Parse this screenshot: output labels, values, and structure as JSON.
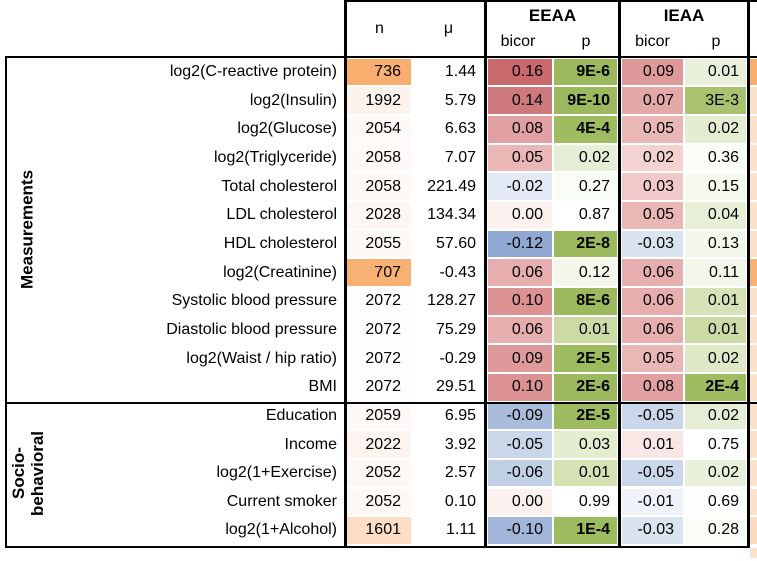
{
  "header": {
    "col_n": "n",
    "col_mu": "μ",
    "group_eeaa": "EEAA",
    "group_ieaa": "IEAA",
    "sub_bicor_eeaa": "bicor",
    "sub_p_eeaa": "p",
    "sub_bicor_ieaa": "bicor",
    "sub_p_ieaa": "p"
  },
  "groups": [
    {
      "label": "Measurements"
    },
    {
      "label": "Socio-\nbehavioral"
    }
  ],
  "colors": {
    "n_highlight_orange": "#F8AE6E",
    "bicor_positive_red": "#C9696E",
    "bicor_negative_blue": "#90A8D1",
    "p_significant_green": "#9CBA5D",
    "edge_column_peach": "#FBE2CA",
    "border_black": "#000000"
  },
  "chart_data": {
    "type": "table",
    "column_groups": [
      "EEAA",
      "IEAA"
    ],
    "columns": [
      "n",
      "μ",
      "EEAA bicor",
      "EEAA p",
      "IEAA bicor",
      "IEAA p"
    ],
    "row_groups": [
      {
        "name": "Measurements",
        "row_count": 12
      },
      {
        "name": "Socio-behavioral",
        "row_count": 5
      }
    ],
    "rows": [
      {
        "label": "log2(C-reactive protein)",
        "n": "736",
        "mu": "1.44",
        "eeaa_bicor": "0.16",
        "eeaa_p": "9E-6",
        "eeaa_p_bold": true,
        "ieaa_bicor": "0.09",
        "ieaa_p": "0.01",
        "ieaa_p_bold": false,
        "bg": {
          "n": "#F8AE6E",
          "mu": "#FFFFFF",
          "eeaa_bicor": "#C9696E",
          "eeaa_p": "#9CBA5D",
          "ieaa_bicor": "#DE999A",
          "ieaa_p": "#E8EFDA",
          "edge": "#F8AE6E"
        }
      },
      {
        "label": "log2(Insulin)",
        "n": "1992",
        "mu": "5.79",
        "eeaa_bicor": "0.14",
        "eeaa_p": "9E-10",
        "eeaa_p_bold": true,
        "ieaa_bicor": "0.07",
        "ieaa_p": "3E-3",
        "ieaa_p_bold": false,
        "bg": {
          "n": "#FDF3ED",
          "mu": "#FFFFFF",
          "eeaa_bicor": "#CE797C",
          "eeaa_p": "#9CBA5D",
          "ieaa_bicor": "#E4A8A9",
          "ieaa_p": "#A8C26F",
          "edge": "#FBE2CA"
        }
      },
      {
        "label": "log2(Glucose)",
        "n": "2054",
        "mu": "6.63",
        "eeaa_bicor": "0.08",
        "eeaa_p": "4E-4",
        "eeaa_p_bold": true,
        "ieaa_bicor": "0.05",
        "ieaa_p": "0.02",
        "ieaa_p_bold": false,
        "bg": {
          "n": "#FEF9F6",
          "mu": "#FFFFFF",
          "eeaa_bicor": "#E1A1A2",
          "eeaa_p": "#9FBC61",
          "ieaa_bicor": "#EAB7B7",
          "ieaa_p": "#E4EDD2",
          "edge": "#FBE2CA"
        }
      },
      {
        "label": "log2(Triglyceride)",
        "n": "2058",
        "mu": "7.07",
        "eeaa_bicor": "0.05",
        "eeaa_p": "0.02",
        "eeaa_p_bold": false,
        "ieaa_bicor": "0.02",
        "ieaa_p": "0.36",
        "ieaa_p_bold": false,
        "bg": {
          "n": "#FEF9F7",
          "mu": "#FFFFFF",
          "eeaa_bicor": "#EAB7B7",
          "eeaa_p": "#E6EED6",
          "ieaa_bicor": "#F3D2D1",
          "ieaa_p": "#FBFDF8",
          "edge": "#FBE2CA"
        }
      },
      {
        "label": "Total cholesterol",
        "n": "2058",
        "mu": "221.49",
        "eeaa_bicor": "-0.02",
        "eeaa_p": "0.27",
        "eeaa_p_bold": false,
        "ieaa_bicor": "0.03",
        "ieaa_p": "0.15",
        "ieaa_p_bold": false,
        "bg": {
          "n": "#FEF9F7",
          "mu": "#FFFFFF",
          "eeaa_bicor": "#E2E9F4",
          "eeaa_p": "#FAFCF6",
          "ieaa_bicor": "#F0C9C8",
          "ieaa_p": "#F5F9EE",
          "edge": "#FBE2CA"
        }
      },
      {
        "label": "LDL cholesterol",
        "n": "2028",
        "mu": "134.34",
        "eeaa_bicor": "0.00",
        "eeaa_p": "0.87",
        "eeaa_p_bold": false,
        "ieaa_bicor": "0.05",
        "ieaa_p": "0.04",
        "ieaa_p_bold": false,
        "bg": {
          "n": "#FEF6F2",
          "mu": "#FFFFFF",
          "eeaa_bicor": "#FBF1EF",
          "eeaa_p": "#FFFFFF",
          "ieaa_bicor": "#EAB7B7",
          "ieaa_p": "#E7EFD6",
          "edge": "#FBE2CA"
        }
      },
      {
        "label": "HDL cholesterol",
        "n": "2055",
        "mu": "57.60",
        "eeaa_bicor": "-0.12",
        "eeaa_p": "2E-8",
        "eeaa_p_bold": true,
        "ieaa_bicor": "-0.03",
        "ieaa_p": "0.13",
        "ieaa_p_bold": false,
        "bg": {
          "n": "#FEF9F6",
          "mu": "#FFFFFF",
          "eeaa_bicor": "#90A8D1",
          "eeaa_p": "#9CBA5D",
          "ieaa_bicor": "#DAE3F0",
          "ieaa_p": "#F4F8EC",
          "edge": "#FBE2CA"
        }
      },
      {
        "label": "log2(Creatinine)",
        "n": "707",
        "mu": "-0.43",
        "eeaa_bicor": "0.06",
        "eeaa_p": "0.12",
        "eeaa_p_bold": false,
        "ieaa_bicor": "0.06",
        "ieaa_p": "0.11",
        "ieaa_p_bold": false,
        "bg": {
          "n": "#F8B172",
          "mu": "#FFFFFF",
          "eeaa_bicor": "#E6AEAF",
          "eeaa_p": "#F3F8EB",
          "ieaa_bicor": "#E6AEAF",
          "ieaa_p": "#F3F7EA",
          "edge": "#F8B172"
        }
      },
      {
        "label": "Systolic blood pressure",
        "n": "2072",
        "mu": "128.27",
        "eeaa_bicor": "0.10",
        "eeaa_p": "8E-6",
        "eeaa_p_bold": true,
        "ieaa_bicor": "0.06",
        "ieaa_p": "0.01",
        "ieaa_p_bold": false,
        "bg": {
          "n": "#FFFEFE",
          "mu": "#FFFFFF",
          "eeaa_bicor": "#DC9193",
          "eeaa_p": "#9CBA5D",
          "ieaa_bicor": "#E6AEAF",
          "ieaa_p": "#D6E3B6",
          "edge": "#FBE2CA"
        }
      },
      {
        "label": "Diastolic blood pressure",
        "n": "2072",
        "mu": "75.29",
        "eeaa_bicor": "0.06",
        "eeaa_p": "0.01",
        "eeaa_p_bold": false,
        "ieaa_bicor": "0.06",
        "ieaa_p": "0.01",
        "ieaa_p_bold": false,
        "bg": {
          "n": "#FFFEFE",
          "mu": "#FFFFFF",
          "eeaa_bicor": "#E6AEAF",
          "eeaa_p": "#CCDBA6",
          "ieaa_bicor": "#E6AEAF",
          "ieaa_p": "#CCDBA6",
          "edge": "#FBE2CA"
        }
      },
      {
        "label": "log2(Waist / hip ratio)",
        "n": "2072",
        "mu": "-0.29",
        "eeaa_bicor": "0.09",
        "eeaa_p": "2E-5",
        "eeaa_p_bold": true,
        "ieaa_bicor": "0.05",
        "ieaa_p": "0.02",
        "ieaa_p_bold": false,
        "bg": {
          "n": "#FFFEFE",
          "mu": "#FFFFFF",
          "eeaa_bicor": "#DE999A",
          "eeaa_p": "#9DBB5F",
          "ieaa_bicor": "#EAB7B7",
          "ieaa_p": "#DFE9C8",
          "edge": "#FBE2CA"
        }
      },
      {
        "label": "BMI",
        "n": "2072",
        "mu": "29.51",
        "eeaa_bicor": "0.10",
        "eeaa_p": "2E-6",
        "eeaa_p_bold": true,
        "ieaa_bicor": "0.08",
        "ieaa_p": "2E-4",
        "ieaa_p_bold": true,
        "bg": {
          "n": "#FFFEFE",
          "mu": "#FFFFFF",
          "eeaa_bicor": "#DC9193",
          "eeaa_p": "#9CBA5D",
          "ieaa_bicor": "#E1A1A2",
          "ieaa_p": "#9FBC61",
          "edge": "#FBE2CA"
        }
      },
      {
        "label": "Education",
        "n": "2059",
        "mu": "6.95",
        "eeaa_bicor": "-0.09",
        "eeaa_p": "2E-5",
        "eeaa_p_bold": true,
        "ieaa_bicor": "-0.05",
        "ieaa_p": "0.02",
        "ieaa_p_bold": false,
        "bg": {
          "n": "#FEF9F6",
          "mu": "#FFFFFF",
          "eeaa_bicor": "#A9BCDC",
          "eeaa_p": "#9DBB5F",
          "ieaa_bicor": "#CAD6E9",
          "ieaa_p": "#E5EDD4",
          "edge": "#FBE2CA"
        }
      },
      {
        "label": "Income",
        "n": "2022",
        "mu": "3.92",
        "eeaa_bicor": "-0.05",
        "eeaa_p": "0.03",
        "eeaa_p_bold": false,
        "ieaa_bicor": "0.01",
        "ieaa_p": "0.75",
        "ieaa_p_bold": false,
        "bg": {
          "n": "#FDF4EF",
          "mu": "#FFFFFF",
          "eeaa_bicor": "#CAD6E9",
          "eeaa_p": "#E4EDD0",
          "ieaa_bicor": "#F9E7E5",
          "ieaa_p": "#FEFFFE",
          "edge": "#FBE2CA"
        }
      },
      {
        "label": "log2(1+Exercise)",
        "n": "2052",
        "mu": "2.57",
        "eeaa_bicor": "-0.06",
        "eeaa_p": "0.01",
        "eeaa_p_bold": false,
        "ieaa_bicor": "-0.05",
        "ieaa_p": "0.02",
        "ieaa_p_bold": false,
        "bg": {
          "n": "#FEF8F5",
          "mu": "#FFFFFF",
          "eeaa_bicor": "#C2D0E6",
          "eeaa_p": "#D5E2B4",
          "ieaa_bicor": "#CAD6E9",
          "ieaa_p": "#E8F0DC",
          "edge": "#FBE2CA"
        }
      },
      {
        "label": "Current smoker",
        "n": "2052",
        "mu": "0.10",
        "eeaa_bicor": "0.00",
        "eeaa_p": "0.99",
        "eeaa_p_bold": false,
        "ieaa_bicor": "-0.01",
        "ieaa_p": "0.69",
        "ieaa_p_bold": false,
        "bg": {
          "n": "#FEF8F5",
          "mu": "#FFFFFF",
          "eeaa_bicor": "#FBF1EF",
          "eeaa_p": "#FFFFFF",
          "ieaa_bicor": "#EFF3F9",
          "ieaa_p": "#FEFFFD",
          "edge": "#FBE2CA"
        }
      },
      {
        "label": "log2(1+Alcohol)",
        "n": "1601",
        "mu": "1.11",
        "eeaa_bicor": "-0.10",
        "eeaa_p": "1E-4",
        "eeaa_p_bold": true,
        "ieaa_bicor": "-0.03",
        "ieaa_p": "0.28",
        "ieaa_p_bold": false,
        "bg": {
          "n": "#FBDEC4",
          "mu": "#FFFFFF",
          "eeaa_bicor": "#A1B6D9",
          "eeaa_p": "#9DBB5F",
          "ieaa_bicor": "#DAE3F0",
          "ieaa_p": "#FAFCF7",
          "edge": "#FBDCC0"
        }
      }
    ]
  }
}
